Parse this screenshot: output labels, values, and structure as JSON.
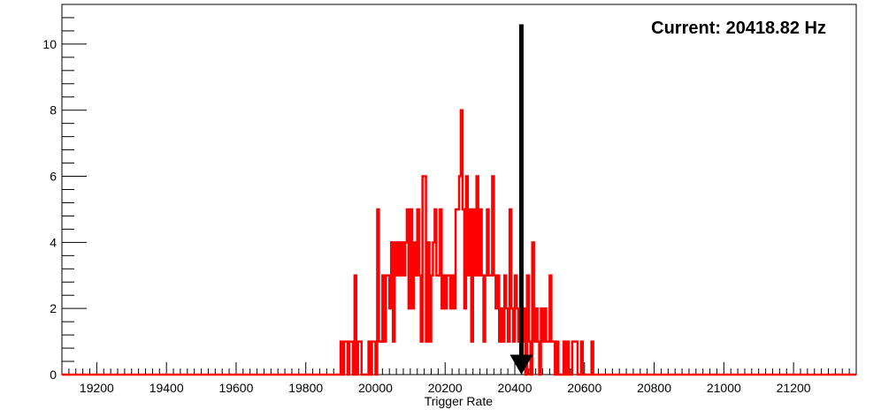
{
  "chart_data": {
    "type": "histogram",
    "xlabel": "Trigger Rate",
    "ylabel": "",
    "xlim": [
      19100,
      21380
    ],
    "ylim": [
      0,
      11.2
    ],
    "x_ticks": [
      "19200",
      "19400",
      "19600",
      "19800",
      "20000",
      "20200",
      "20400",
      "20600",
      "20800",
      "21000",
      "21200"
    ],
    "y_ticks": [
      "0",
      "2",
      "4",
      "6",
      "8",
      "10"
    ],
    "x_tick_values": [
      19200,
      19400,
      19600,
      19800,
      20000,
      20200,
      20400,
      20600,
      20800,
      21000,
      21200
    ],
    "y_tick_values": [
      0,
      2,
      4,
      6,
      8,
      10
    ],
    "bin_width": 5,
    "series": [
      {
        "color": "#ff0000",
        "bins": [
          [
            19900,
            1
          ],
          [
            19905,
            0
          ],
          [
            19910,
            1
          ],
          [
            19915,
            1
          ],
          [
            19920,
            0
          ],
          [
            19925,
            1
          ],
          [
            19930,
            1
          ],
          [
            19935,
            0
          ],
          [
            19940,
            3
          ],
          [
            19945,
            0
          ],
          [
            19950,
            1
          ],
          [
            19955,
            1
          ],
          [
            19960,
            0
          ],
          [
            19965,
            0
          ],
          [
            19970,
            0
          ],
          [
            19975,
            0
          ],
          [
            19980,
            1
          ],
          [
            19985,
            0
          ],
          [
            19990,
            1
          ],
          [
            19995,
            1
          ],
          [
            20000,
            0
          ],
          [
            20005,
            5
          ],
          [
            20010,
            1
          ],
          [
            20015,
            1
          ],
          [
            20020,
            3
          ],
          [
            20025,
            1
          ],
          [
            20030,
            3
          ],
          [
            20035,
            3
          ],
          [
            20040,
            2
          ],
          [
            20045,
            4
          ],
          [
            20050,
            1
          ],
          [
            20055,
            4
          ],
          [
            20060,
            3
          ],
          [
            20065,
            4
          ],
          [
            20070,
            3
          ],
          [
            20075,
            4
          ],
          [
            20080,
            3
          ],
          [
            20085,
            4
          ],
          [
            20090,
            5
          ],
          [
            20095,
            2
          ],
          [
            20100,
            5
          ],
          [
            20105,
            2
          ],
          [
            20110,
            4
          ],
          [
            20115,
            3
          ],
          [
            20120,
            5
          ],
          [
            20125,
            3
          ],
          [
            20130,
            1
          ],
          [
            20135,
            6
          ],
          [
            20140,
            6
          ],
          [
            20145,
            1
          ],
          [
            20150,
            4
          ],
          [
            20155,
            1
          ],
          [
            20160,
            3
          ],
          [
            20165,
            4
          ],
          [
            20170,
            5
          ],
          [
            20175,
            3
          ],
          [
            20180,
            3
          ],
          [
            20185,
            5
          ],
          [
            20190,
            2
          ],
          [
            20195,
            3
          ],
          [
            20200,
            2
          ],
          [
            20205,
            3
          ],
          [
            20210,
            3
          ],
          [
            20215,
            2
          ],
          [
            20220,
            3
          ],
          [
            20225,
            2
          ],
          [
            20230,
            5
          ],
          [
            20235,
            5
          ],
          [
            20240,
            6
          ],
          [
            20245,
            8
          ],
          [
            20250,
            5
          ],
          [
            20255,
            2
          ],
          [
            20260,
            6
          ],
          [
            20265,
            3
          ],
          [
            20270,
            5
          ],
          [
            20275,
            1
          ],
          [
            20280,
            5
          ],
          [
            20285,
            3
          ],
          [
            20290,
            6
          ],
          [
            20295,
            3
          ],
          [
            20300,
            5
          ],
          [
            20305,
            3
          ],
          [
            20310,
            1
          ],
          [
            20315,
            3
          ],
          [
            20320,
            5
          ],
          [
            20325,
            3
          ],
          [
            20330,
            3
          ],
          [
            20335,
            6
          ],
          [
            20340,
            3
          ],
          [
            20345,
            2
          ],
          [
            20350,
            3
          ],
          [
            20355,
            1
          ],
          [
            20360,
            2
          ],
          [
            20365,
            1
          ],
          [
            20370,
            3
          ],
          [
            20375,
            2
          ],
          [
            20380,
            1
          ],
          [
            20385,
            5
          ],
          [
            20390,
            2
          ],
          [
            20395,
            1
          ],
          [
            20400,
            3
          ],
          [
            20405,
            2
          ],
          [
            20410,
            1
          ],
          [
            20415,
            2
          ],
          [
            20420,
            1
          ],
          [
            20425,
            2
          ],
          [
            20430,
            0
          ],
          [
            20435,
            3
          ],
          [
            20440,
            1
          ],
          [
            20445,
            0
          ],
          [
            20450,
            4
          ],
          [
            20455,
            1
          ],
          [
            20460,
            2
          ],
          [
            20465,
            1
          ],
          [
            20470,
            0
          ],
          [
            20475,
            2
          ],
          [
            20480,
            1
          ],
          [
            20485,
            2
          ],
          [
            20490,
            1
          ],
          [
            20495,
            1
          ],
          [
            20500,
            3
          ],
          [
            20505,
            1
          ],
          [
            20510,
            1
          ],
          [
            20515,
            0
          ],
          [
            20520,
            1
          ],
          [
            20525,
            0
          ],
          [
            20530,
            0
          ],
          [
            20535,
            0
          ],
          [
            20540,
            1
          ],
          [
            20545,
            0
          ],
          [
            20550,
            1
          ],
          [
            20555,
            0
          ],
          [
            20560,
            0
          ],
          [
            20565,
            1
          ],
          [
            20570,
            1
          ],
          [
            20575,
            1
          ],
          [
            20580,
            0
          ],
          [
            20585,
            0
          ],
          [
            20590,
            1
          ],
          [
            20595,
            0
          ],
          [
            20600,
            0
          ],
          [
            20605,
            0
          ],
          [
            20610,
            0
          ],
          [
            20615,
            0
          ],
          [
            20620,
            1
          ],
          [
            20625,
            0
          ]
        ]
      }
    ],
    "annotation": {
      "text": "Current: 20418.82 Hz",
      "value": 20418.82
    }
  }
}
